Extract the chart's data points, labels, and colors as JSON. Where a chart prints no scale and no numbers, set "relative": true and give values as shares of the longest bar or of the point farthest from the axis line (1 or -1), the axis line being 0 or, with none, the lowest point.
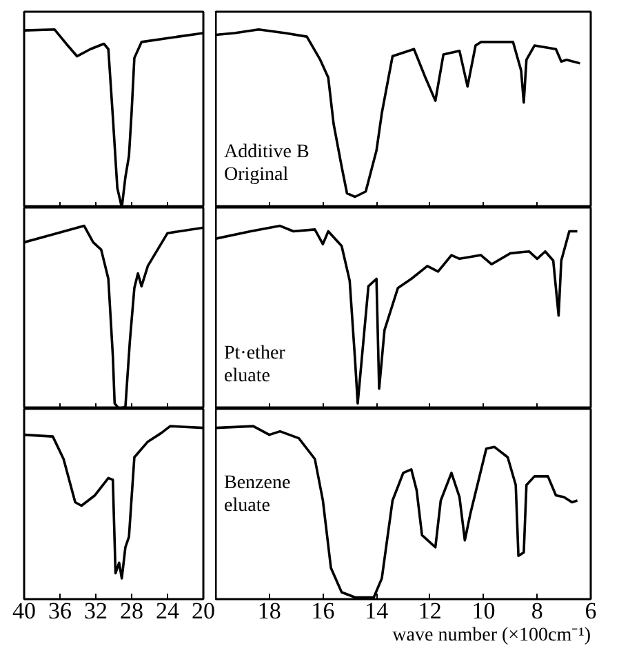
{
  "chart_data": [
    {
      "type": "line",
      "relative": true,
      "tick_labels": false,
      "xlim": [
        40,
        20
      ],
      "xticks": [
        40,
        36,
        32,
        28,
        24,
        20
      ],
      "series": [
        {
          "color": "#000000",
          "x": [
            40,
            36.6,
            35.3,
            34.1,
            32.6,
            31.1,
            30.6,
            30.1,
            29.6,
            29.1,
            28.7,
            28.3,
            28.0,
            27.7,
            26.9,
            22.8,
            20
          ],
          "values": [
            0.995,
            1.0,
            0.92,
            0.85,
            0.89,
            0.92,
            0.89,
            0.51,
            0.11,
            0,
            0.17,
            0.29,
            0.54,
            0.84,
            0.93,
            0.96,
            0.98
          ]
        }
      ]
    },
    {
      "type": "line",
      "relative": true,
      "tick_labels": false,
      "xlim": [
        20,
        6
      ],
      "xticks": [
        18,
        16,
        14,
        12,
        10,
        8,
        6
      ],
      "annotations": [
        "Additive B\nOriginal"
      ],
      "series": [
        {
          "color": "#000000",
          "x": [
            20,
            19.3,
            18.4,
            17.4,
            16.6,
            16.1,
            15.8,
            15.6,
            15.3,
            15.1,
            14.8,
            14.4,
            14.0,
            13.8,
            13.4,
            12.6,
            12.2,
            11.8,
            11.5,
            10.9,
            10.6,
            10.3,
            10.1,
            8.9,
            8.6,
            8.5,
            8.4,
            8.1,
            7.3,
            7.1,
            6.9,
            6.4
          ],
          "values": [
            0.97,
            0.98,
            1.0,
            0.98,
            0.96,
            0.83,
            0.73,
            0.47,
            0.23,
            0.08,
            0.06,
            0.09,
            0.32,
            0.53,
            0.85,
            0.89,
            0.74,
            0.6,
            0.86,
            0.88,
            0.68,
            0.91,
            0.93,
            0.93,
            0.77,
            0.59,
            0.83,
            0.91,
            0.89,
            0.82,
            0.83,
            0.81
          ]
        }
      ]
    },
    {
      "type": "line",
      "relative": true,
      "tick_labels": false,
      "xlim": [
        40,
        20
      ],
      "xticks": [
        40,
        36,
        32,
        28,
        24,
        20
      ],
      "series": [
        {
          "color": "#000000",
          "x": [
            40,
            37.0,
            33.3,
            32.3,
            31.4,
            30.6,
            30.1,
            29.9,
            29.4,
            28.7,
            28.2,
            27.7,
            27.3,
            26.9,
            26.2,
            24.0,
            20
          ],
          "values": [
            0.91,
            0.95,
            1.0,
            0.91,
            0.87,
            0.71,
            0.29,
            0.03,
            0,
            0.01,
            0.37,
            0.66,
            0.74,
            0.67,
            0.78,
            0.96,
            0.99
          ]
        }
      ]
    },
    {
      "type": "line",
      "relative": true,
      "tick_labels": false,
      "xlim": [
        20,
        6
      ],
      "xticks": [
        18,
        16,
        14,
        12,
        10,
        8,
        6
      ],
      "annotations": [
        "Pt·ether\neluate"
      ],
      "series": [
        {
          "color": "#000000",
          "x": [
            20,
            18.7,
            17.6,
            17.1,
            16.3,
            16.0,
            15.8,
            15.3,
            15.0,
            14.8,
            14.7,
            14.5,
            14.3,
            14.0,
            13.9,
            13.7,
            13.2,
            12.7,
            12.1,
            11.7,
            11.2,
            10.9,
            10.1,
            9.7,
            9.0,
            8.3,
            8.0,
            7.7,
            7.4,
            7.2,
            7.1,
            6.8,
            6.5
          ],
          "values": [
            0.93,
            0.97,
            1.0,
            0.97,
            0.98,
            0.9,
            0.97,
            0.89,
            0.7,
            0.27,
            0.03,
            0.35,
            0.67,
            0.71,
            0.11,
            0.43,
            0.66,
            0.71,
            0.78,
            0.75,
            0.84,
            0.82,
            0.84,
            0.79,
            0.85,
            0.86,
            0.82,
            0.86,
            0.81,
            0.51,
            0.81,
            0.97,
            0.97
          ]
        }
      ]
    },
    {
      "type": "line",
      "relative": true,
      "tick_labels": "x",
      "xlim": [
        40,
        20
      ],
      "xticks": [
        40,
        36,
        32,
        28,
        24,
        20
      ],
      "series": [
        {
          "color": "#000000",
          "x": [
            40,
            36.8,
            35.6,
            34.3,
            33.6,
            32.1,
            30.6,
            30.1,
            29.8,
            29.4,
            29.1,
            28.7,
            28.3,
            27.7,
            26.2,
            24.7,
            23.7,
            20
          ],
          "values": [
            0.95,
            0.94,
            0.81,
            0.56,
            0.54,
            0.6,
            0.7,
            0.69,
            0.15,
            0.21,
            0.12,
            0.3,
            0.36,
            0.82,
            0.91,
            0.96,
            1.0,
            0.99
          ]
        }
      ]
    },
    {
      "type": "line",
      "relative": true,
      "tick_labels": "x",
      "xlim": [
        20,
        6
      ],
      "xticks": [
        18,
        16,
        14,
        12,
        10,
        8,
        6
      ],
      "xlabel": "wave number (×100cm⁻¹)",
      "annotations": [
        "Benzene\neluate"
      ],
      "series": [
        {
          "color": "#000000",
          "x": [
            20,
            18.6,
            18.0,
            17.6,
            16.9,
            16.3,
            16.0,
            15.7,
            15.3,
            14.8,
            14.1,
            13.8,
            13.4,
            13.0,
            12.7,
            12.5,
            12.3,
            11.8,
            11.6,
            11.2,
            10.9,
            10.7,
            10.5,
            9.9,
            9.6,
            9.1,
            8.8,
            8.7,
            8.5,
            8.4,
            8.1,
            7.6,
            7.3,
            7.0,
            6.7,
            6.5
          ],
          "values": [
            0.99,
            1.0,
            0.95,
            0.97,
            0.93,
            0.81,
            0.57,
            0.18,
            0.04,
            0.01,
            0.01,
            0.12,
            0.57,
            0.73,
            0.75,
            0.63,
            0.37,
            0.3,
            0.57,
            0.73,
            0.59,
            0.34,
            0.49,
            0.87,
            0.88,
            0.82,
            0.66,
            0.25,
            0.27,
            0.66,
            0.71,
            0.71,
            0.6,
            0.59,
            0.56,
            0.57
          ]
        }
      ]
    }
  ]
}
